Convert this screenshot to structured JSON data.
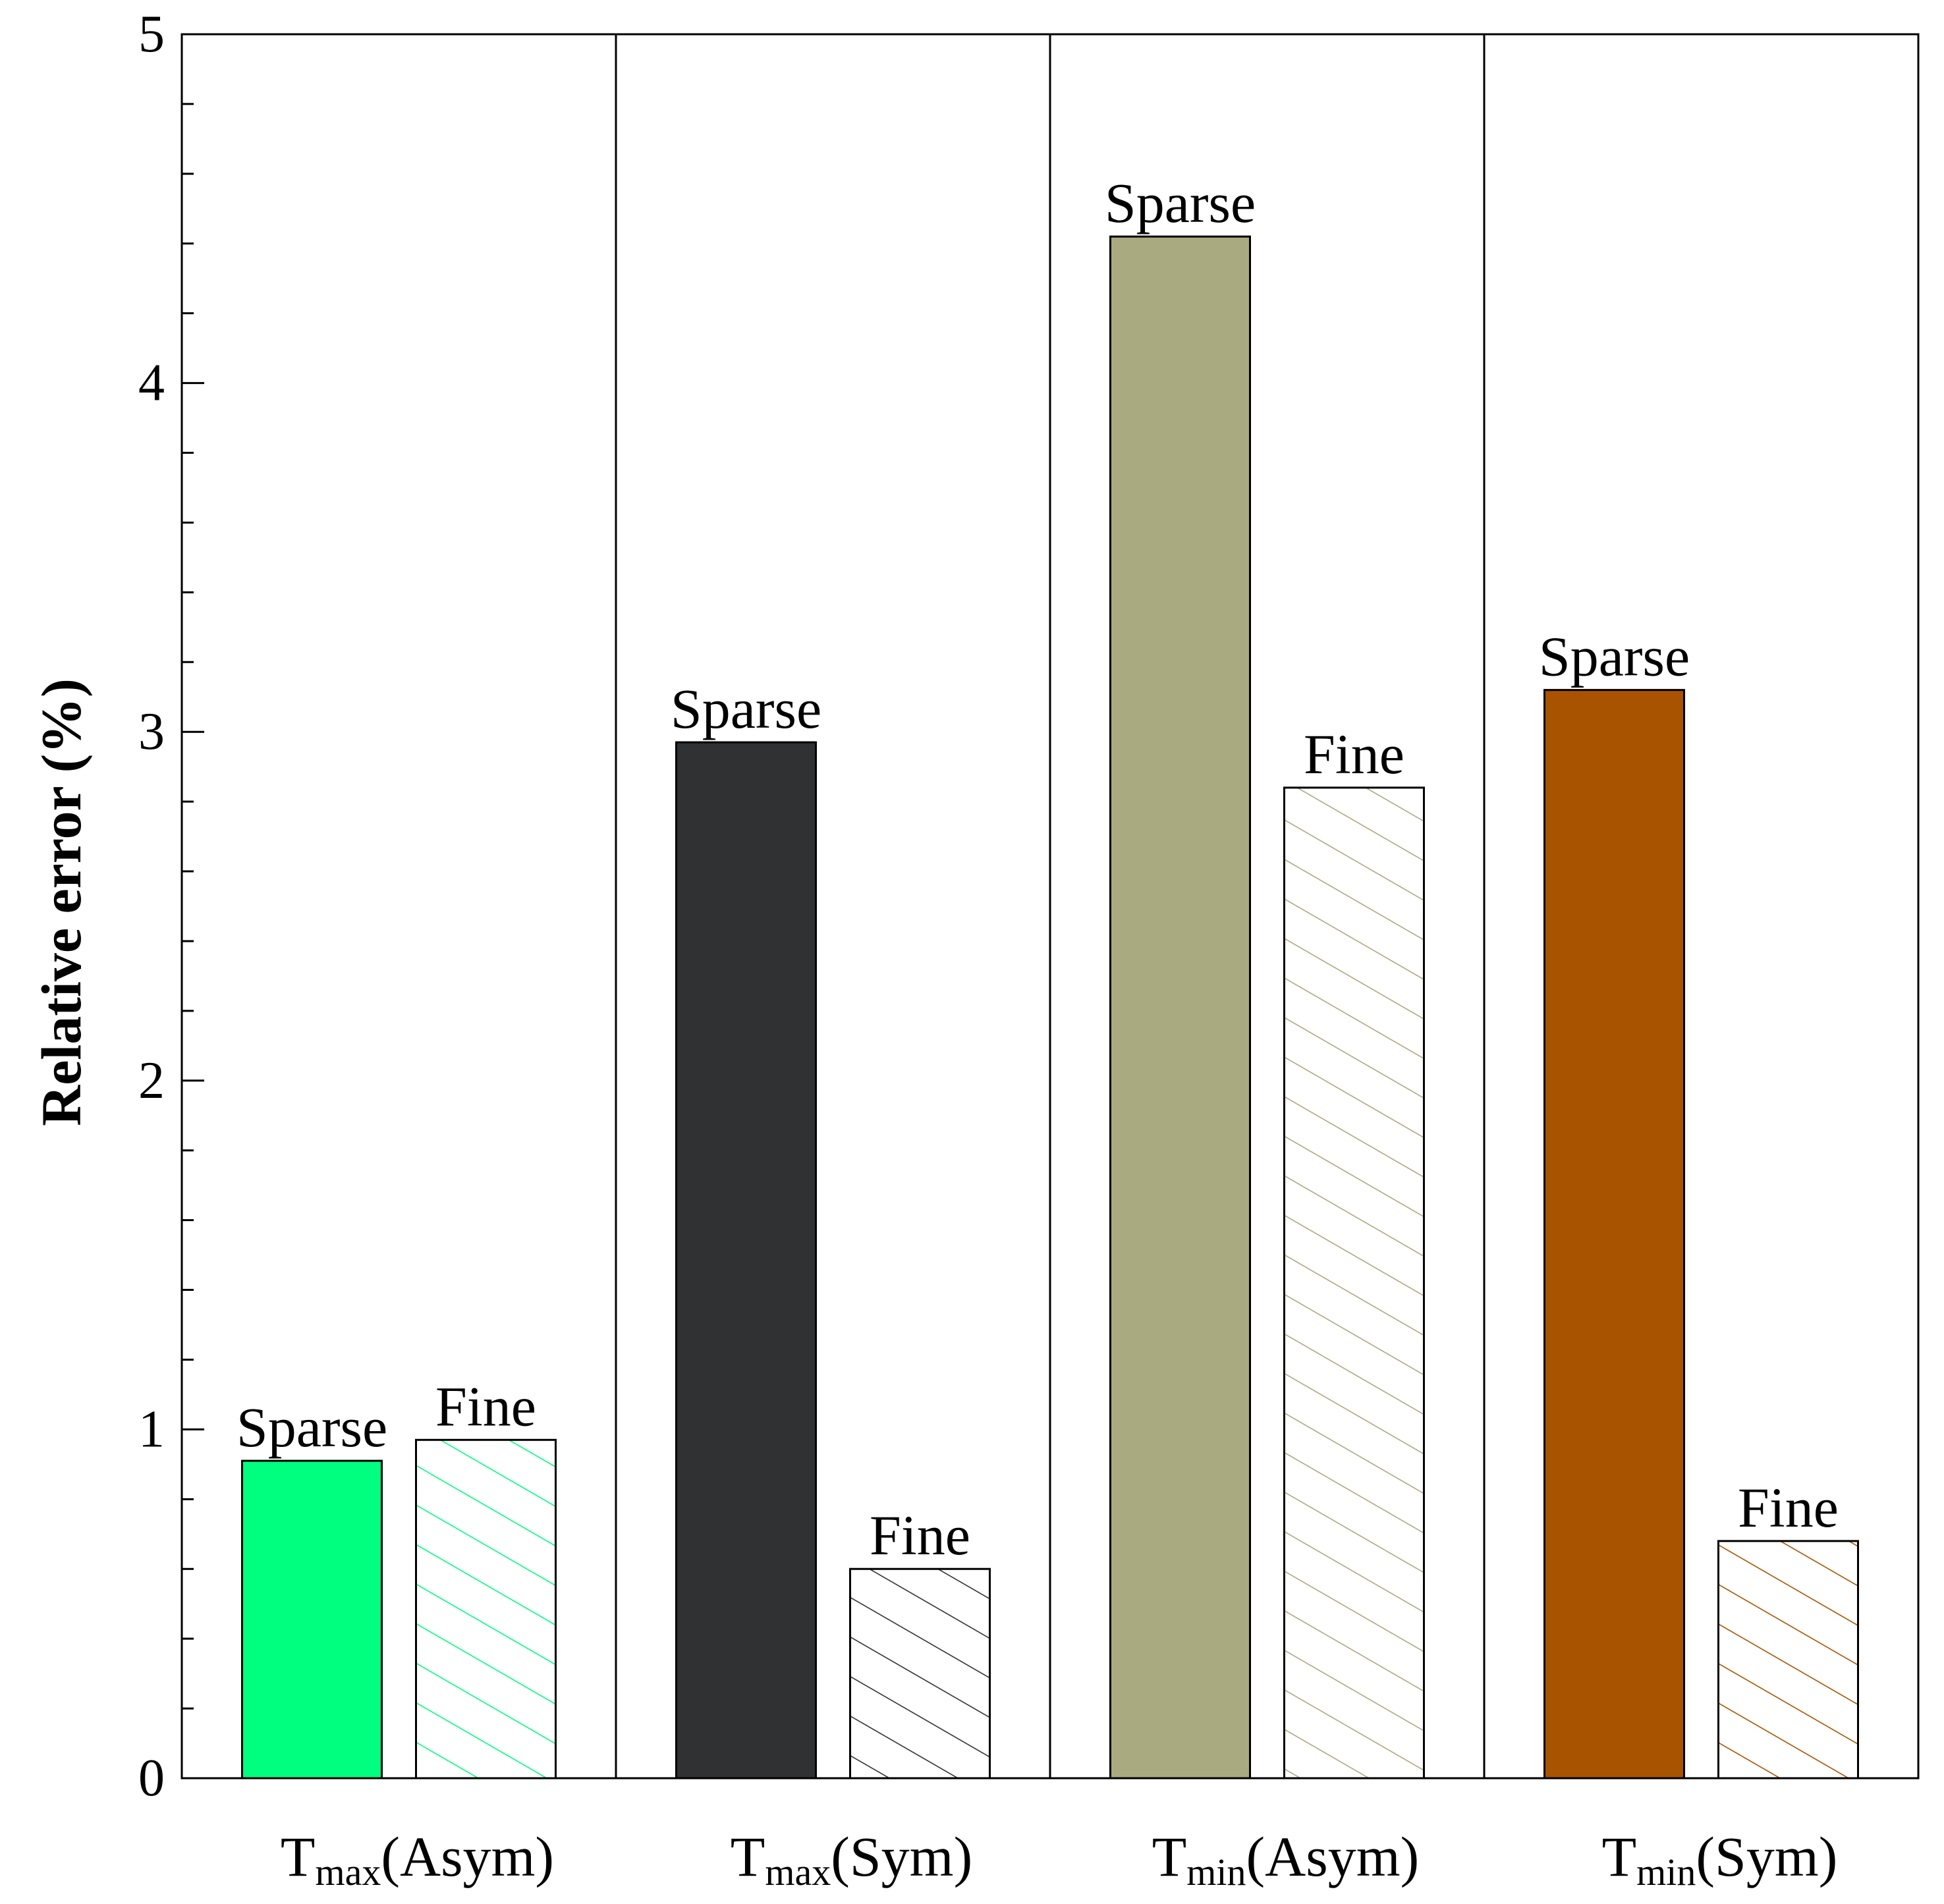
{
  "chart_data": {
    "type": "bar",
    "ylabel": "Relative error (%)",
    "ylim": [
      0,
      5
    ],
    "yticks": [
      "0",
      "1",
      "2",
      "3",
      "4",
      "5"
    ],
    "grid": false,
    "legend": "none",
    "groups": [
      {
        "label_main": "T",
        "label_sub": "max",
        "label_rest": "(Asym)",
        "color": "#00ff7f",
        "bars": [
          {
            "label": "Sparse",
            "value": 0.91,
            "pattern": "solid"
          },
          {
            "label": "Fine",
            "value": 0.97,
            "pattern": "hatch"
          }
        ]
      },
      {
        "label_main": "T",
        "label_sub": "max",
        "label_rest": "(Sym)",
        "color": "#303132",
        "bars": [
          {
            "label": "Sparse",
            "value": 2.97,
            "pattern": "solid"
          },
          {
            "label": "Fine",
            "value": 0.6,
            "pattern": "hatch"
          }
        ]
      },
      {
        "label_main": "T",
        "label_sub": "min",
        "label_rest": "(Asym)",
        "color": "#a9aa80",
        "bars": [
          {
            "label": "Sparse",
            "value": 4.42,
            "pattern": "solid"
          },
          {
            "label": "Fine",
            "value": 2.84,
            "pattern": "hatch"
          }
        ]
      },
      {
        "label_main": "T",
        "label_sub": "min",
        "label_rest": "(Sym)",
        "color": "#a85300",
        "bars": [
          {
            "label": "Sparse",
            "value": 3.12,
            "pattern": "solid"
          },
          {
            "label": "Fine",
            "value": 0.68,
            "pattern": "hatch"
          }
        ]
      }
    ]
  }
}
